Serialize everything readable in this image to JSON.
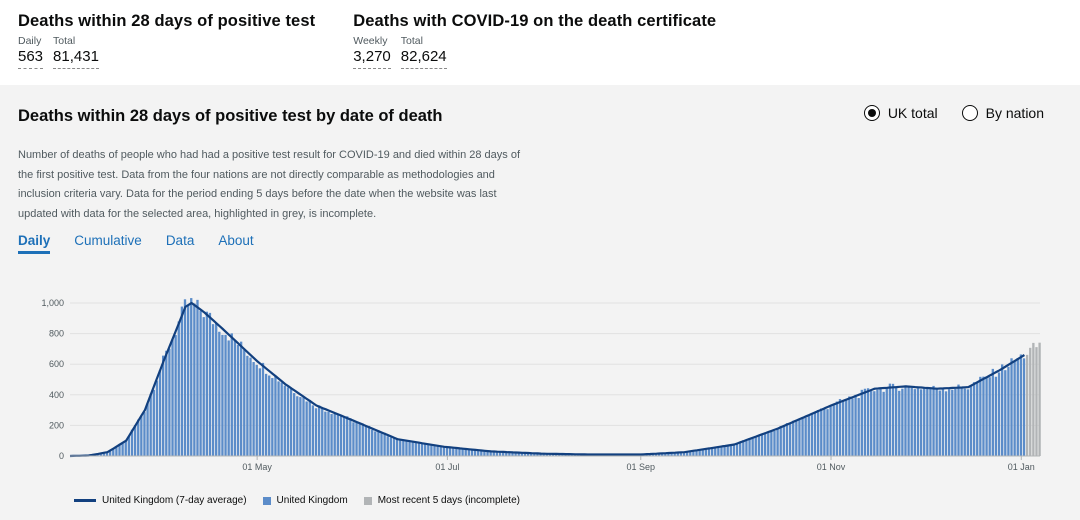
{
  "headlines": [
    {
      "title": "Deaths within 28 days of positive test",
      "metrics": [
        {
          "label": "Daily",
          "value": "563"
        },
        {
          "label": "Total",
          "value": "81,431"
        }
      ]
    },
    {
      "title": "Deaths with COVID-19 on the death certificate",
      "metrics": [
        {
          "label": "Weekly",
          "value": "3,270"
        },
        {
          "label": "Total",
          "value": "82,624"
        }
      ]
    }
  ],
  "card": {
    "title": "Deaths within 28 days of positive test by date of death",
    "description": "Number of deaths of people who had had a positive test result for COVID-19 and died within 28 days of the first positive test. Data from the four nations are not directly comparable as methodologies and inclusion criteria vary. Data for the period ending 5 days before the date when the website was last updated with data for the selected area, highlighted in grey, is incomplete.",
    "radios": [
      {
        "label": "UK total",
        "selected": true
      },
      {
        "label": "By nation",
        "selected": false
      }
    ],
    "tabs": [
      "Daily",
      "Cumulative",
      "Data",
      "About"
    ],
    "active_tab": "Daily"
  },
  "colors": {
    "bar": "#5b8cc9",
    "avg_line": "#12407f",
    "incomplete": "#b1b4b6",
    "grid": "#e1e1e1"
  },
  "chart_data": {
    "type": "bar",
    "title": "Deaths within 28 days of positive test by date of death",
    "xlabel": "",
    "ylabel": "",
    "ylim": [
      0,
      1000
    ],
    "yticks": [
      0,
      200,
      400,
      600,
      800,
      "1,000"
    ],
    "x_range": [
      "2020-03-02",
      "2021-01-07"
    ],
    "x_tick_labels": [
      {
        "date": "2020-05-01",
        "label": "01 May"
      },
      {
        "date": "2020-07-01",
        "label": "01 Jul"
      },
      {
        "date": "2020-09-01",
        "label": "01 Sep"
      },
      {
        "date": "2020-11-01",
        "label": "01 Nov"
      },
      {
        "date": "2021-01-01",
        "label": "01 Jan"
      }
    ],
    "legend": [
      {
        "name": "United Kingdom (7-day average)",
        "kind": "line"
      },
      {
        "name": "United Kingdom",
        "kind": "bar"
      },
      {
        "name": "Most recent 5 days (incomplete)",
        "kind": "bar-grey"
      }
    ],
    "legend_position": "bottom",
    "daily_anchor_points": [
      {
        "date": "2020-03-02",
        "value": 0
      },
      {
        "date": "2020-03-08",
        "value": 3
      },
      {
        "date": "2020-03-14",
        "value": 25
      },
      {
        "date": "2020-03-20",
        "value": 100
      },
      {
        "date": "2020-03-26",
        "value": 300
      },
      {
        "date": "2020-04-01",
        "value": 620
      },
      {
        "date": "2020-04-05",
        "value": 820
      },
      {
        "date": "2020-04-08",
        "value": 975
      },
      {
        "date": "2020-04-10",
        "value": 1000
      },
      {
        "date": "2020-04-14",
        "value": 940
      },
      {
        "date": "2020-04-20",
        "value": 830
      },
      {
        "date": "2020-05-01",
        "value": 620
      },
      {
        "date": "2020-05-10",
        "value": 470
      },
      {
        "date": "2020-05-20",
        "value": 330
      },
      {
        "date": "2020-06-01",
        "value": 230
      },
      {
        "date": "2020-06-15",
        "value": 110
      },
      {
        "date": "2020-06-30",
        "value": 60
      },
      {
        "date": "2020-07-15",
        "value": 30
      },
      {
        "date": "2020-08-01",
        "value": 15
      },
      {
        "date": "2020-08-15",
        "value": 10
      },
      {
        "date": "2020-09-01",
        "value": 10
      },
      {
        "date": "2020-09-15",
        "value": 25
      },
      {
        "date": "2020-10-01",
        "value": 75
      },
      {
        "date": "2020-10-15",
        "value": 180
      },
      {
        "date": "2020-11-01",
        "value": 330
      },
      {
        "date": "2020-11-15",
        "value": 440
      },
      {
        "date": "2020-11-25",
        "value": 455
      },
      {
        "date": "2020-12-05",
        "value": 440
      },
      {
        "date": "2020-12-15",
        "value": 450
      },
      {
        "date": "2020-12-25",
        "value": 560
      },
      {
        "date": "2021-01-02",
        "value": 660
      },
      {
        "date": "2021-01-07",
        "value": 730
      }
    ],
    "incomplete_from": "2021-01-03"
  }
}
